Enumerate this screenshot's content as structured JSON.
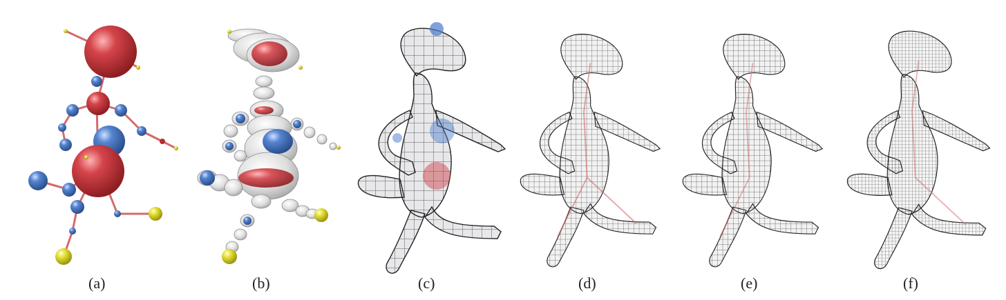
{
  "figure": {
    "panels": [
      {
        "id": "a",
        "label": "(a)"
      },
      {
        "id": "b",
        "label": "(b)"
      },
      {
        "id": "c",
        "label": "(c)"
      },
      {
        "id": "d",
        "label": "(d)"
      },
      {
        "id": "e",
        "label": "(e)"
      },
      {
        "id": "f",
        "label": "(f)"
      }
    ]
  },
  "colors": {
    "red_sphere": "#c9373d",
    "blue_sphere": "#4a7ac7",
    "yellow_sphere": "#e2dc2c",
    "skeleton_link": "#d46a6a",
    "mesh_line": "#222222",
    "surface_gray": "#dcdcdc"
  }
}
